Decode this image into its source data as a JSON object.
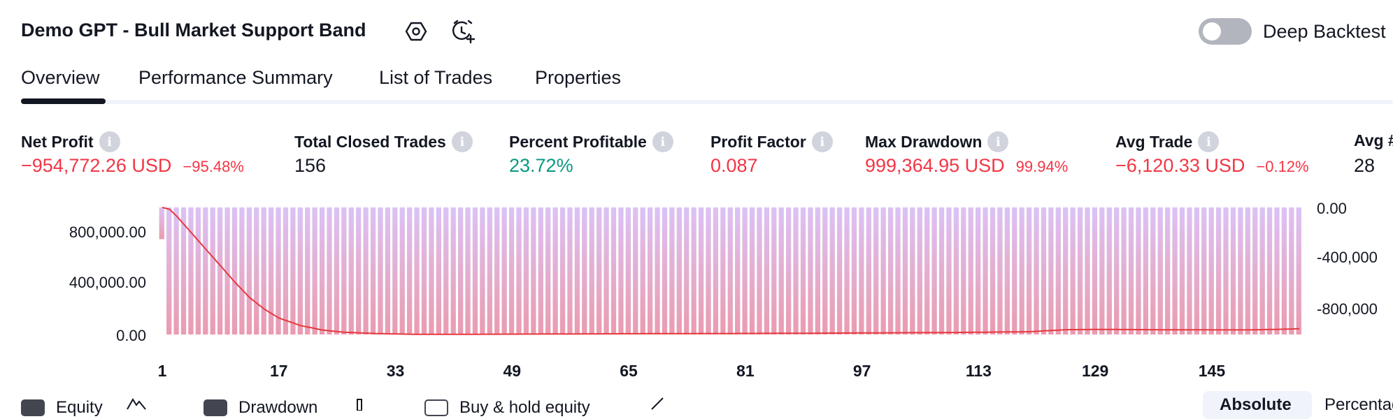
{
  "header": {
    "title": "Demo GPT - Bull Market Support Band",
    "settings_icon": "hexagon-settings-icon",
    "alert_icon": "alarm-clock-plus-icon",
    "deep_backtest_label": "Deep Backtest",
    "deep_backtest_on": false
  },
  "tabs": [
    {
      "label": "Overview",
      "active": true
    },
    {
      "label": "Performance Summary",
      "active": false
    },
    {
      "label": "List of Trades",
      "active": false
    },
    {
      "label": "Properties",
      "active": false
    }
  ],
  "metrics": [
    {
      "label": "Net Profit",
      "value": "−954,772.26 USD",
      "sub": "−95.48%"
    },
    {
      "label": "Total Closed Trades",
      "value": "156",
      "sub": ""
    },
    {
      "label": "Percent Profitable",
      "value": "23.72%",
      "sub": ""
    },
    {
      "label": "Profit Factor",
      "value": "0.087",
      "sub": ""
    },
    {
      "label": "Max Drawdown",
      "value": "999,364.95 USD",
      "sub": "99.94%"
    },
    {
      "label": "Avg Trade",
      "value": "−6,120.33 USD",
      "sub": "−0.12%"
    },
    {
      "label": "Avg #",
      "value": "28",
      "sub": ""
    }
  ],
  "colors": {
    "negative": "#f23645",
    "positive": "#089981",
    "drawdown_bar_top": "#dcc2f5",
    "drawdown_bar_bottom": "#ea9bb0",
    "equity_line": "#e5393f"
  },
  "chart_data": {
    "type": "area",
    "title": "",
    "xlabel": "",
    "ylabel": "",
    "x_ticks": [
      "1",
      "17",
      "33",
      "49",
      "65",
      "81",
      "97",
      "113",
      "129",
      "145"
    ],
    "y_left_ticks": [
      "800,000.00",
      "400,000.00",
      "0.00"
    ],
    "y_right_ticks": [
      "0.00",
      "-400,000",
      "-800,000"
    ],
    "ylim_left": [
      0,
      1000000
    ],
    "ylim_right": [
      -1000000,
      0
    ],
    "xlim": [
      1,
      157
    ],
    "series": [
      {
        "name": "Equity",
        "type": "line",
        "x": [
          1,
          2,
          3,
          5,
          7,
          9,
          11,
          13,
          15,
          17,
          20,
          23,
          26,
          30,
          35,
          40,
          50,
          60,
          70,
          80,
          90,
          100,
          110,
          120,
          125,
          130,
          140,
          150,
          155,
          157
        ],
        "y": [
          1000000,
          985000,
          930000,
          800000,
          670000,
          540000,
          410000,
          290000,
          200000,
          130000,
          70000,
          35000,
          18000,
          8000,
          2000,
          1000,
          3000,
          5000,
          7000,
          8000,
          10000,
          13000,
          16000,
          22000,
          38000,
          40000,
          37000,
          36000,
          42000,
          45000
        ]
      },
      {
        "name": "Drawdown",
        "type": "bar",
        "x": [
          1,
          2,
          3,
          5,
          7,
          9,
          11,
          13,
          15,
          17,
          20,
          23,
          26,
          30,
          35,
          40,
          157
        ],
        "y": [
          -250000,
          -1000000,
          -1000000,
          -1000000,
          -1000000,
          -1000000,
          -1000000,
          -1000000,
          -1000000,
          -1000000,
          -1000000,
          -1000000,
          -1000000,
          -1000000,
          -1000000,
          -1000000,
          -1000000
        ]
      }
    ]
  },
  "legend": [
    {
      "label": "Equity",
      "icon": "mountain-icon",
      "style": "filled"
    },
    {
      "label": "Drawdown",
      "icon": "bar-icon",
      "style": "filled"
    },
    {
      "label": "Buy & hold equity",
      "icon": "line-icon",
      "style": "outline"
    }
  ],
  "scale_toggle": {
    "options": [
      "Absolute",
      "Percentage"
    ],
    "selected": "Absolute"
  }
}
